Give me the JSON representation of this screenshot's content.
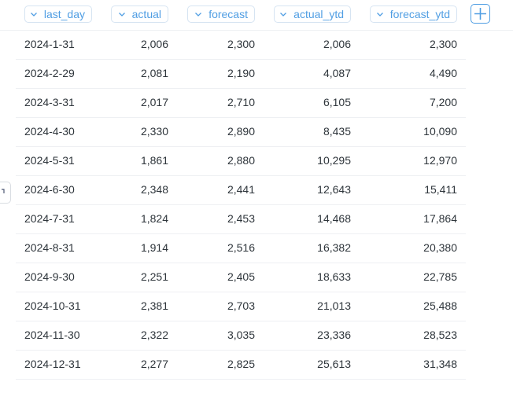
{
  "columns": {
    "last_day": "last_day",
    "actual": "actual",
    "forecast": "forecast",
    "actual_ytd": "actual_ytd",
    "forecast_ytd": "forecast_ytd"
  },
  "rows": [
    {
      "last_day": "2024-1-31",
      "actual": "2,006",
      "forecast": "2,300",
      "actual_ytd": "2,006",
      "forecast_ytd": "2,300"
    },
    {
      "last_day": "2024-2-29",
      "actual": "2,081",
      "forecast": "2,190",
      "actual_ytd": "4,087",
      "forecast_ytd": "4,490"
    },
    {
      "last_day": "2024-3-31",
      "actual": "2,017",
      "forecast": "2,710",
      "actual_ytd": "6,105",
      "forecast_ytd": "7,200"
    },
    {
      "last_day": "2024-4-30",
      "actual": "2,330",
      "forecast": "2,890",
      "actual_ytd": "8,435",
      "forecast_ytd": "10,090"
    },
    {
      "last_day": "2024-5-31",
      "actual": "1,861",
      "forecast": "2,880",
      "actual_ytd": "10,295",
      "forecast_ytd": "12,970"
    },
    {
      "last_day": "2024-6-30",
      "actual": "2,348",
      "forecast": "2,441",
      "actual_ytd": "12,643",
      "forecast_ytd": "15,411"
    },
    {
      "last_day": "2024-7-31",
      "actual": "1,824",
      "forecast": "2,453",
      "actual_ytd": "14,468",
      "forecast_ytd": "17,864"
    },
    {
      "last_day": "2024-8-31",
      "actual": "1,914",
      "forecast": "2,516",
      "actual_ytd": "16,382",
      "forecast_ytd": "20,380"
    },
    {
      "last_day": "2024-9-30",
      "actual": "2,251",
      "forecast": "2,405",
      "actual_ytd": "18,633",
      "forecast_ytd": "22,785"
    },
    {
      "last_day": "2024-10-31",
      "actual": "2,381",
      "forecast": "2,703",
      "actual_ytd": "21,013",
      "forecast_ytd": "25,488"
    },
    {
      "last_day": "2024-11-30",
      "actual": "2,322",
      "forecast": "3,035",
      "actual_ytd": "23,336",
      "forecast_ytd": "28,523"
    },
    {
      "last_day": "2024-12-31",
      "actual": "2,277",
      "forecast": "2,825",
      "actual_ytd": "25,613",
      "forecast_ytd": "31,348"
    }
  ],
  "colors": {
    "accent": "#509ee3",
    "text": "#2e353b",
    "border": "#d6e4f2"
  },
  "icons": {
    "column_menu": "chevron-down-icon",
    "add_column": "plus-icon",
    "side_handle": "corner-arrow-icon"
  }
}
